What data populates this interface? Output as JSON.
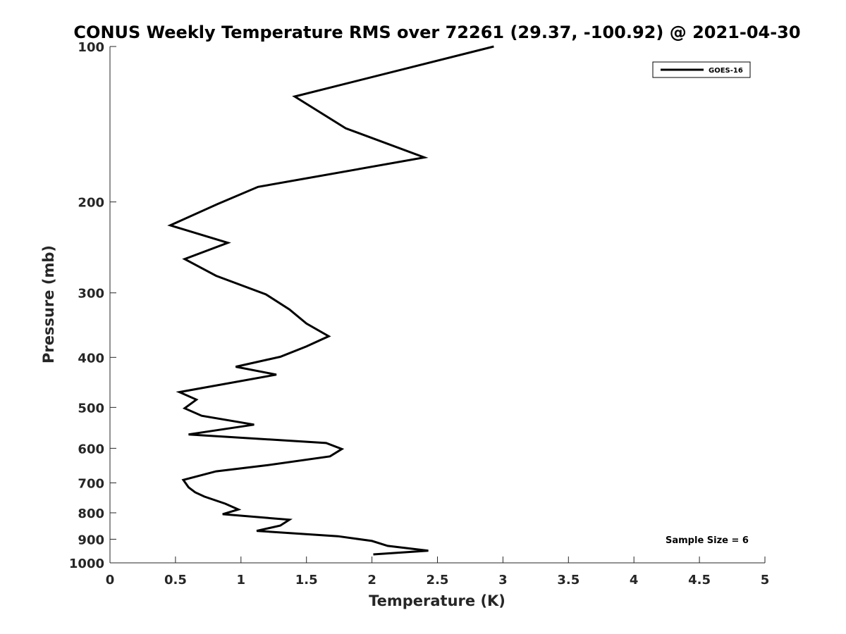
{
  "chart_data": {
    "type": "line",
    "title": "CONUS Weekly Temperature RMS over 72261 (29.37, -100.92) @ 2021-04-30",
    "xlabel": "Temperature (K)",
    "ylabel": "Pressure (mb)",
    "xlim": [
      0,
      5
    ],
    "ylim": [
      100,
      1000
    ],
    "y_scale": "log",
    "y_reversed": true,
    "grid": false,
    "legend_position": "top-right",
    "x_ticks": [
      "0",
      "0.5",
      "1",
      "1.5",
      "2",
      "2.5",
      "3",
      "3.5",
      "4",
      "4.5",
      "5"
    ],
    "y_ticks": [
      "100",
      "200",
      "300",
      "400",
      "500",
      "600",
      "700",
      "800",
      "900",
      "1000"
    ],
    "annotation": "Sample Size = 6",
    "series": [
      {
        "name": "GOES-16",
        "color": "#000000",
        "points": [
          [
            2.93,
            100
          ],
          [
            1.41,
            125
          ],
          [
            1.8,
            144
          ],
          [
            2.4,
            164
          ],
          [
            1.13,
            187
          ],
          [
            0.82,
            202
          ],
          [
            0.46,
            222
          ],
          [
            0.9,
            240
          ],
          [
            0.57,
            258
          ],
          [
            0.81,
            278
          ],
          [
            1.19,
            302
          ],
          [
            1.37,
            323
          ],
          [
            1.5,
            344
          ],
          [
            1.67,
            364
          ],
          [
            1.5,
            381
          ],
          [
            1.3,
            399
          ],
          [
            0.96,
            417
          ],
          [
            1.27,
            432
          ],
          [
            0.53,
            467
          ],
          [
            0.66,
            483
          ],
          [
            0.57,
            502
          ],
          [
            0.7,
            519
          ],
          [
            1.1,
            540
          ],
          [
            0.6,
            564
          ],
          [
            1.65,
            586
          ],
          [
            1.77,
            602
          ],
          [
            1.68,
            622
          ],
          [
            1.2,
            647
          ],
          [
            0.81,
            665
          ],
          [
            0.56,
            691
          ],
          [
            0.6,
            714
          ],
          [
            0.65,
            730
          ],
          [
            0.72,
            744
          ],
          [
            0.88,
            768
          ],
          [
            0.98,
            788
          ],
          [
            0.86,
            805
          ],
          [
            1.37,
            825
          ],
          [
            1.3,
            847
          ],
          [
            1.12,
            867
          ],
          [
            1.74,
            888
          ],
          [
            2.0,
            907
          ],
          [
            2.12,
            927
          ],
          [
            2.43,
            947
          ],
          [
            2.01,
            963
          ]
        ]
      }
    ]
  }
}
